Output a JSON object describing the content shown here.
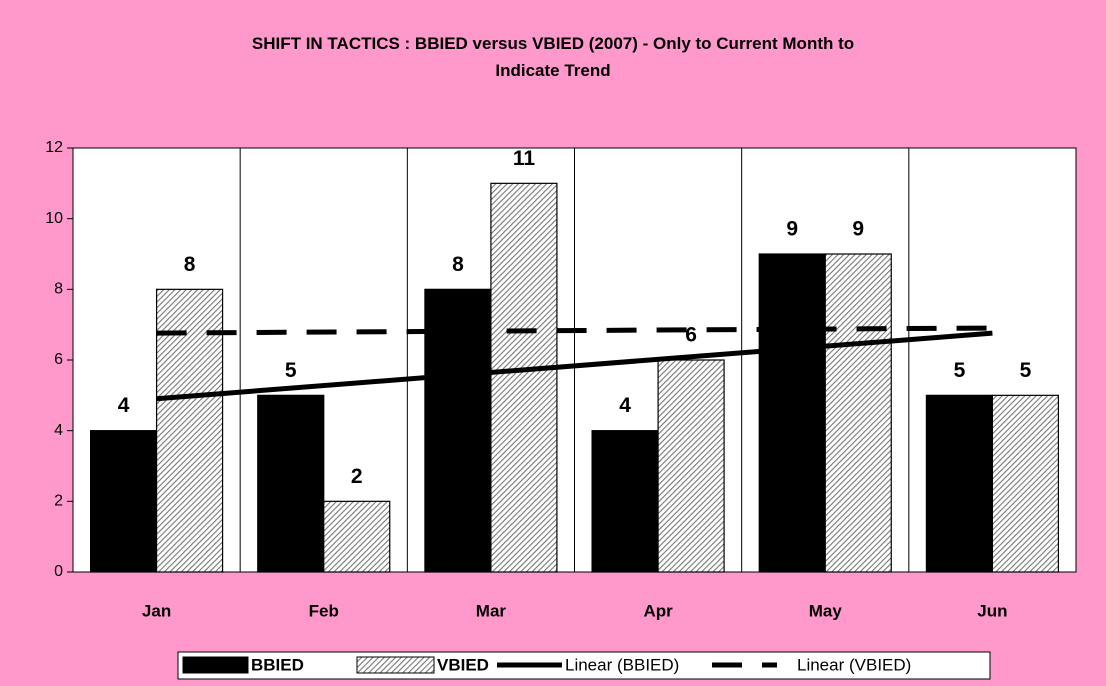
{
  "chart_data": {
    "type": "bar",
    "title": "SHIFT IN TACTICS : BBIED versus VBIED (2007) - Only to Current Month to Indicate Trend",
    "categories": [
      "Jan",
      "Feb",
      "Mar",
      "Apr",
      "May",
      "Jun"
    ],
    "series": [
      {
        "name": "BBIED",
        "color": "#000000",
        "pattern": "solid",
        "values": [
          4,
          5,
          8,
          4,
          9,
          5
        ],
        "trendline": {
          "name": "Linear (BBIED)",
          "style": "solid"
        }
      },
      {
        "name": "VBIED",
        "color": "#777777",
        "pattern": "hatch",
        "values": [
          8,
          2,
          11,
          6,
          9,
          5
        ],
        "trendline": {
          "name": "Linear (VBIED)",
          "style": "dashed"
        }
      }
    ],
    "ylim": [
      0,
      12
    ],
    "yticks": [
      0,
      2,
      4,
      6,
      8,
      10,
      12
    ],
    "legend": "bottom"
  }
}
